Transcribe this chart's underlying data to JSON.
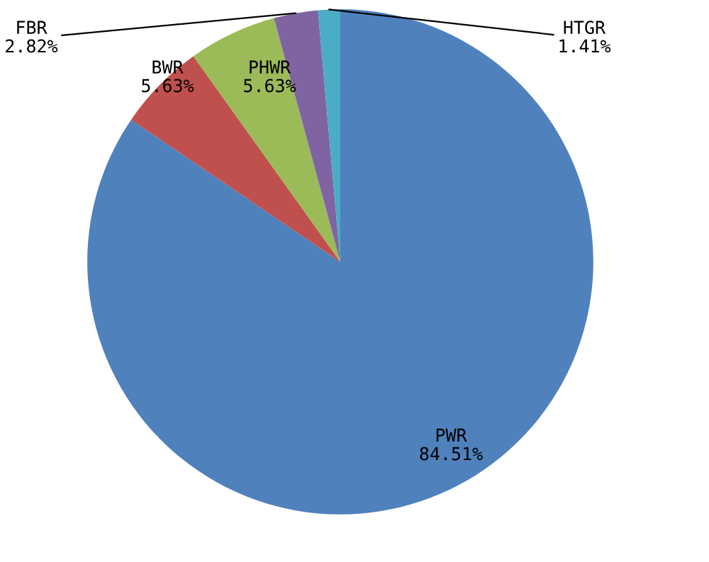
{
  "chart_data": {
    "type": "pie",
    "categories": [
      "PWR",
      "BWR",
      "PHWR",
      "FBR",
      "HTGR"
    ],
    "values": [
      84.51,
      5.63,
      5.63,
      2.82,
      1.41
    ],
    "colors": [
      "#4f81bd",
      "#c0504d",
      "#9bbb59",
      "#8064a2",
      "#4bacc6"
    ],
    "data_labels": true,
    "value_labels": [
      "84.51%",
      "5.63%",
      "5.63%",
      "2.82%",
      "1.41%"
    ]
  }
}
